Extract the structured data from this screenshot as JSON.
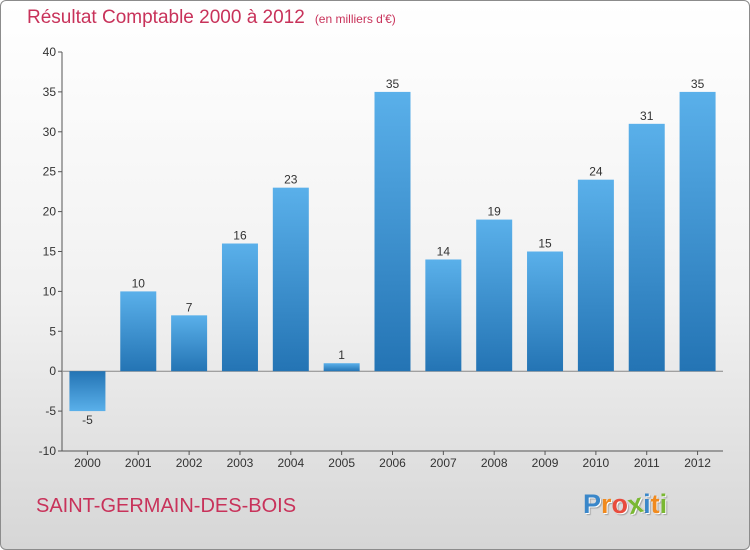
{
  "chart_data": {
    "type": "bar",
    "title": "Résultat Comptable 2000 à 2012",
    "subtitle": "(en milliers d'€)",
    "categories": [
      "2000",
      "2001",
      "2002",
      "2003",
      "2004",
      "2005",
      "2006",
      "2007",
      "2008",
      "2009",
      "2010",
      "2011",
      "2012"
    ],
    "values": [
      -5,
      10,
      7,
      16,
      23,
      1,
      35,
      14,
      19,
      15,
      24,
      31,
      35
    ],
    "labels": [
      "-5",
      "10",
      "7",
      "16",
      "23",
      "1",
      "35",
      "14",
      "19",
      "15",
      "24",
      "31",
      "35"
    ],
    "yticks": [
      "-10",
      "-5",
      "0",
      "5",
      "10",
      "15",
      "20",
      "25",
      "30",
      "35",
      "40"
    ],
    "ylim": [
      -10,
      40
    ],
    "xlabel": "",
    "ylabel": "",
    "grid": false,
    "colors": {
      "bar_light": "#5ab0ea",
      "bar_dark": "#2474b4",
      "title": "#c8325a"
    }
  },
  "footer": {
    "town": "SAINT-GERMAIN-DES-BOIS",
    "logo": {
      "letters": [
        "P",
        "r",
        "o",
        "x",
        "i",
        "t",
        "i"
      ],
      "colors": [
        "#3a87c9",
        "#f08a1e",
        "#e84c3d",
        "#7ab833",
        "#3a87c9",
        "#f08a1e",
        "#7ab833"
      ]
    }
  }
}
